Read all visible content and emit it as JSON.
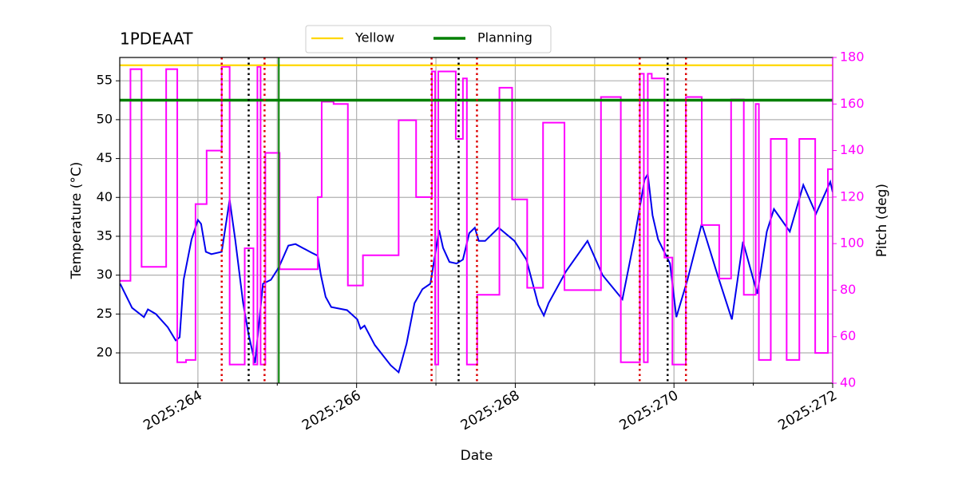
{
  "chart_data": {
    "type": "line",
    "title": "1PDEAAT",
    "xlabel": "Date",
    "ylabel": "Temperature (°C)",
    "y2label": "Pitch (deg)",
    "xlim": [
      263.015,
      272
    ],
    "xticks": [
      {
        "value": 264,
        "label": "2025:264"
      },
      {
        "value": 266,
        "label": "2025:266"
      },
      {
        "value": 268,
        "label": "2025:268"
      },
      {
        "value": 270,
        "label": "2025:270"
      },
      {
        "value": 272,
        "label": "2025:272"
      }
    ],
    "xminorticks": [
      265,
      267,
      269,
      271
    ],
    "ylim": [
      16.1,
      58
    ],
    "yticks": [
      20,
      25,
      30,
      35,
      40,
      45,
      50,
      55
    ],
    "y2lim": [
      40,
      180
    ],
    "y2ticks": [
      40,
      60,
      80,
      100,
      120,
      140,
      160,
      180
    ],
    "y2color": "#ff00ff",
    "grid": true,
    "legend": "upper center",
    "hlines": [
      {
        "name": "Yellow",
        "color": "#ffd700",
        "y": 57
      },
      {
        "name": "Planning",
        "color": "#008000",
        "y": 52.5
      }
    ],
    "vlines": [
      {
        "x": 265.02,
        "color": "#008000",
        "style": "solid"
      },
      {
        "x": 264.3,
        "color": "#dd0000",
        "style": "dotted"
      },
      {
        "x": 264.84,
        "color": "#dd0000",
        "style": "dotted"
      },
      {
        "x": 266.945,
        "color": "#dd0000",
        "style": "dotted"
      },
      {
        "x": 267.517,
        "color": "#dd0000",
        "style": "dotted"
      },
      {
        "x": 269.568,
        "color": "#dd0000",
        "style": "dotted"
      },
      {
        "x": 270.151,
        "color": "#dd0000",
        "style": "dotted"
      },
      {
        "x": 264.64,
        "color": "#000000",
        "style": "dotted"
      },
      {
        "x": 267.286,
        "color": "#000000",
        "style": "dotted"
      },
      {
        "x": 269.92,
        "color": "#000000",
        "style": "dotted"
      }
    ],
    "series": [
      {
        "color": "#0000ee",
        "x": [
          263.02,
          263.17,
          263.32,
          263.37,
          263.47,
          263.62,
          263.72,
          263.77,
          263.82,
          263.92,
          264.0,
          264.04,
          264.1,
          264.17,
          264.3,
          264.4,
          264.47,
          264.57,
          264.64,
          264.72,
          264.82,
          264.92,
          265.02,
          265.14,
          265.23,
          265.43,
          265.51,
          265.55,
          265.61,
          265.68,
          265.88,
          266.01,
          266.05,
          266.1,
          266.23,
          266.43,
          266.53,
          266.63,
          266.73,
          266.83,
          266.93,
          267.04,
          267.09,
          267.17,
          267.26,
          267.34,
          267.42,
          267.49,
          267.54,
          267.62,
          267.79,
          267.99,
          268.14,
          268.29,
          268.36,
          268.42,
          268.64,
          268.91,
          269.1,
          269.35,
          269.5,
          269.63,
          269.67,
          269.73,
          269.8,
          269.95,
          270.03,
          270.17,
          270.35,
          270.55,
          270.73,
          270.87,
          271.05,
          271.17,
          271.26,
          271.46,
          271.63,
          271.79,
          271.97,
          272.0
        ],
        "values": [
          28.9,
          25.8,
          24.6,
          25.6,
          25.0,
          23.3,
          21.6,
          22.0,
          29.4,
          34.6,
          37.1,
          36.6,
          33.0,
          32.7,
          33.0,
          39.7,
          34.6,
          26.4,
          22.3,
          18.7,
          28.9,
          29.4,
          31.0,
          33.8,
          34.0,
          32.9,
          32.5,
          30.0,
          27.2,
          25.9,
          25.5,
          24.3,
          23.1,
          23.5,
          21.0,
          18.4,
          17.5,
          21.2,
          26.4,
          28.2,
          28.9,
          35.8,
          33.5,
          31.7,
          31.5,
          32.0,
          35.4,
          36.1,
          34.4,
          34.4,
          36.1,
          34.4,
          32.0,
          26.2,
          24.8,
          26.4,
          30.5,
          34.4,
          30.0,
          26.9,
          34.6,
          42.3,
          43.0,
          37.7,
          34.6,
          31.5,
          24.6,
          29.4,
          36.6,
          30.0,
          24.3,
          34.3,
          27.6,
          35.6,
          38.5,
          35.6,
          41.6,
          37.9,
          42.0,
          40.7
        ]
      },
      {
        "color": "#ff00ff",
        "axis": "y2",
        "drawstyle": "steps-post",
        "x": [
          263.02,
          263.15,
          263.29,
          263.6,
          263.74,
          263.85,
          263.97,
          264.11,
          264.3,
          264.4,
          264.59,
          264.7,
          264.75,
          264.79,
          264.85,
          265.03,
          265.51,
          265.56,
          265.71,
          265.89,
          266.08,
          266.53,
          266.75,
          266.95,
          266.99,
          267.03,
          267.25,
          267.34,
          267.39,
          267.52,
          267.8,
          267.96,
          268.15,
          268.35,
          268.62,
          269.08,
          269.33,
          269.57,
          269.62,
          269.67,
          269.72,
          269.88,
          269.98,
          270.15,
          270.35,
          270.57,
          270.72,
          270.88,
          271.03,
          271.07,
          271.22,
          271.42,
          271.58,
          271.78,
          271.94,
          272.0
        ],
        "values": [
          84,
          175,
          90,
          175,
          49,
          50,
          117,
          140,
          176,
          48,
          98,
          48,
          176,
          48,
          139,
          89,
          120,
          161,
          160,
          82,
          95,
          153,
          120,
          174,
          48,
          174,
          145,
          171,
          48,
          78,
          167,
          119,
          81,
          152,
          80,
          163,
          49,
          173,
          49,
          173,
          171,
          94,
          48,
          163,
          108,
          85,
          162,
          78,
          160,
          50,
          145,
          50,
          145,
          53,
          132,
          132
        ]
      }
    ]
  }
}
